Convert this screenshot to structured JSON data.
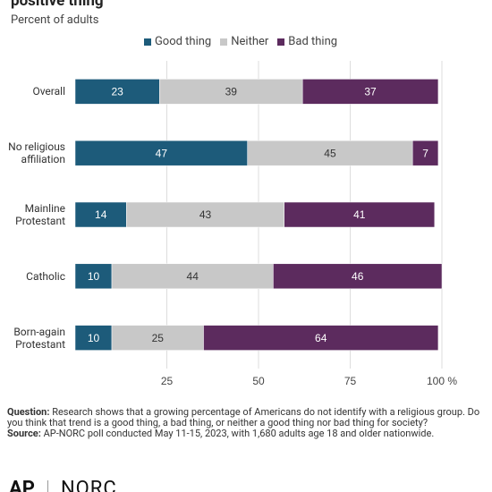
{
  "chart_data": {
    "type": "stacked-bar-horizontal",
    "title": "positive thing",
    "subtitle": "Percent of adults",
    "categories": [
      "Overall",
      "No religious\naffiliation",
      "Mainline\nProtestant",
      "Catholic",
      "Born-again\nProtestant"
    ],
    "series": [
      {
        "name": "Good thing",
        "color": "#1d5b7a",
        "values": [
          23,
          47,
          14,
          10,
          10
        ]
      },
      {
        "name": "Neither",
        "color": "#c8c8c8",
        "values": [
          39,
          45,
          43,
          44,
          25
        ]
      },
      {
        "name": "Bad thing",
        "color": "#5c2b5e",
        "values": [
          37,
          7,
          41,
          46,
          64
        ]
      }
    ],
    "xlim": [
      0,
      100
    ],
    "xticks": [
      25,
      50,
      75,
      {
        "value": 100,
        "label": "100 %"
      }
    ],
    "grid": true
  },
  "footer": {
    "question_label": "Question:",
    "question_text": "Research shows that a growing percentage of Americans do not identify with a religious group. Do you think that trend is a good thing, a bad thing, or neither a good thing nor bad thing for society?",
    "source_label": "Source:",
    "source_text": "AP-NORC poll conducted May 11-15, 2023, with 1,680 adults age 18 and older nationwide.",
    "logos": [
      "AP",
      "NORC"
    ]
  }
}
